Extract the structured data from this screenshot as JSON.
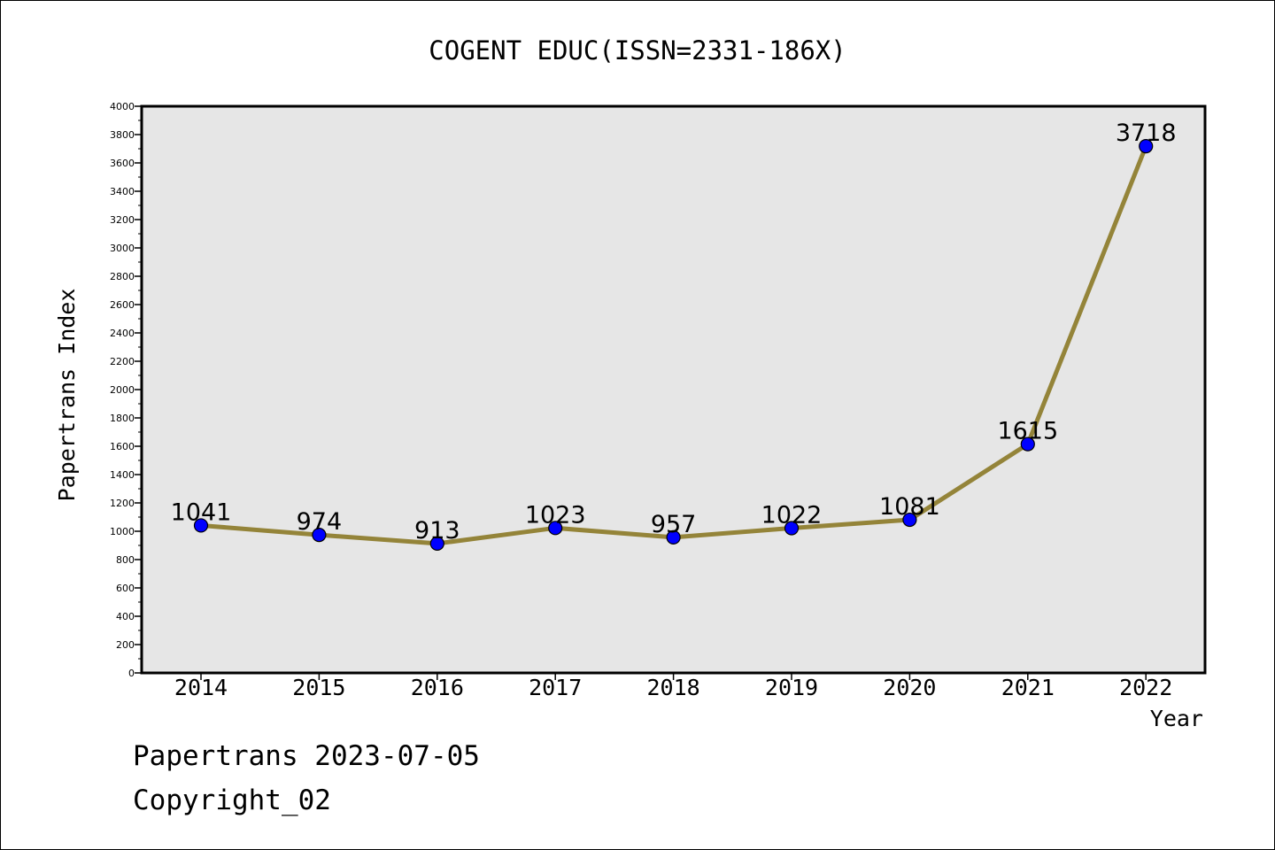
{
  "footer": {
    "line1": "Papertrans 2023-07-05",
    "line2": "Copyright_02"
  },
  "colors": {
    "plot_bg": "#e6e6e6",
    "line": "#948439",
    "marker": "#0000ff"
  },
  "chart_data": {
    "type": "line",
    "title": "COGENT EDUC(ISSN=2331-186X)",
    "xlabel": "Year",
    "ylabel": "Papertrans Index",
    "categories": [
      "2014",
      "2015",
      "2016",
      "2017",
      "2018",
      "2019",
      "2020",
      "2021",
      "2022"
    ],
    "series": [
      {
        "values": [
          1041,
          974,
          913,
          1023,
          957,
          1022,
          1081,
          1615,
          3718
        ]
      }
    ],
    "data_labels": [
      "1041",
      "974",
      "913",
      "1023",
      "957",
      "1022",
      "1081",
      "1615",
      "3718"
    ],
    "ylim": [
      0,
      4000
    ],
    "yticks": [
      0,
      200,
      400,
      600,
      800,
      1000,
      1200,
      1400,
      1600,
      1800,
      2000,
      2200,
      2400,
      2600,
      2800,
      3000,
      3200,
      3400,
      3600,
      3800,
      4000
    ],
    "grid": false,
    "legend": "none"
  }
}
